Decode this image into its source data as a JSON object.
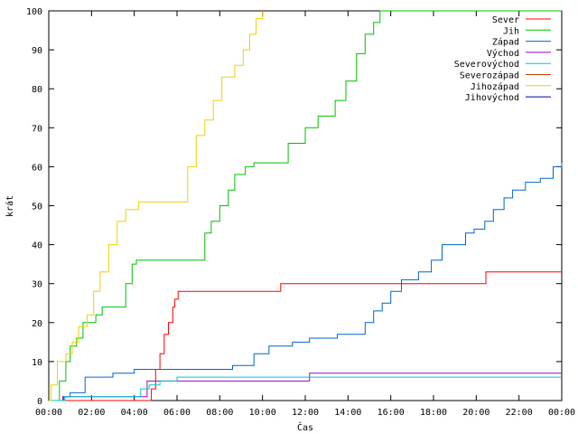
{
  "chart_data": {
    "type": "line",
    "title": "",
    "xlabel": "Čas",
    "ylabel": "krát",
    "ylim": [
      0,
      100
    ],
    "yticks": [
      0,
      10,
      20,
      30,
      40,
      50,
      60,
      70,
      80,
      90,
      100
    ],
    "xlim": [
      0,
      24
    ],
    "xticks": [
      {
        "value": 0,
        "label": "00:00"
      },
      {
        "value": 2,
        "label": "02:00"
      },
      {
        "value": 4,
        "label": "04:00"
      },
      {
        "value": 6,
        "label": "06:00"
      },
      {
        "value": 8,
        "label": "08:00"
      },
      {
        "value": 10,
        "label": "10:00"
      },
      {
        "value": 12,
        "label": "12:00"
      },
      {
        "value": 14,
        "label": "14:00"
      },
      {
        "value": 16,
        "label": "16:00"
      },
      {
        "value": 18,
        "label": "18:00"
      },
      {
        "value": 20,
        "label": "20:00"
      },
      {
        "value": 22,
        "label": "22:00"
      },
      {
        "value": 24,
        "label": "00:00"
      }
    ],
    "grid": false,
    "legend_position": "top-right",
    "x_unit": "hours",
    "series": [
      {
        "name": "Sever",
        "color": "#ff0000",
        "x": [
          0,
          4.6,
          4.8,
          5.0,
          5.2,
          5.4,
          5.6,
          5.8,
          5.9,
          6.05,
          10.8,
          10.85,
          20.4,
          20.45,
          24
        ],
        "y": [
          0,
          0,
          3,
          8,
          12,
          17,
          20,
          24,
          26,
          28,
          28,
          30,
          30,
          33,
          33
        ]
      },
      {
        "name": "Jih",
        "color": "#00c000",
        "x": [
          0,
          0.2,
          0.5,
          0.8,
          1.0,
          1.3,
          1.6,
          2.0,
          2.2,
          2.5,
          3.3,
          3.6,
          3.9,
          4.1,
          7.0,
          7.3,
          7.6,
          8.0,
          8.4,
          8.7,
          9.2,
          9.6,
          10.3,
          11.2,
          12.0,
          12.6,
          13.4,
          13.9,
          14.4,
          14.8,
          15.2,
          15.5,
          24
        ],
        "y": [
          0,
          0,
          5,
          10,
          14,
          16,
          20,
          20,
          22,
          24,
          24,
          30,
          35,
          36,
          36,
          43,
          46,
          50,
          54,
          58,
          60,
          61,
          61,
          66,
          70,
          73,
          77,
          82,
          89,
          94,
          97,
          100,
          100
        ]
      },
      {
        "name": "Západ",
        "color": "#0066cc",
        "x": [
          0,
          0.7,
          1.0,
          1.7,
          2.9,
          3.0,
          4.0,
          5.0,
          8.6,
          9.6,
          10.3,
          11.4,
          12.2,
          13.5,
          14.2,
          14.8,
          15.2,
          15.6,
          16.0,
          16.5,
          17.3,
          17.9,
          18.4,
          19.5,
          19.9,
          20.4,
          20.8,
          21.3,
          21.7,
          22.3,
          23.0,
          23.6,
          24.0
        ],
        "y": [
          0,
          1,
          2,
          6,
          6,
          7,
          8,
          8,
          9,
          12,
          14,
          15,
          16,
          17,
          17,
          20,
          23,
          25,
          28,
          31,
          33,
          36,
          40,
          43,
          44,
          46,
          49,
          52,
          54,
          56,
          57,
          60,
          61
        ]
      },
      {
        "name": "Východ",
        "color": "#a000c0",
        "x": [
          0,
          0.65,
          4.55,
          4.6,
          12.15,
          12.2,
          24
        ],
        "y": [
          0,
          1,
          1,
          5,
          5,
          7,
          7
        ]
      },
      {
        "name": "Severovýchod",
        "color": "#00c8c8",
        "x": [
          0,
          0.75,
          4.1,
          4.3,
          4.7,
          5.2,
          5.8,
          6.0,
          10.5,
          24
        ],
        "y": [
          0,
          1,
          1,
          3,
          4,
          5,
          5,
          6,
          6,
          6
        ]
      },
      {
        "name": "Severozápad",
        "color": "#c04000",
        "x": [],
        "y": []
      },
      {
        "name": "Jihozápad",
        "color": "#f0d000",
        "x": [
          0,
          0.1,
          0.4,
          0.8,
          1.1,
          1.4,
          1.8,
          2.1,
          2.4,
          2.8,
          3.2,
          3.6,
          4.2,
          6.1,
          6.5,
          6.9,
          7.3,
          7.7,
          8.1,
          8.7,
          9.1,
          9.4,
          9.7,
          10.0
        ],
        "y": [
          0,
          4,
          10,
          12,
          15,
          19,
          22,
          28,
          33,
          40,
          46,
          49,
          51,
          51,
          60,
          68,
          72,
          77,
          83,
          86,
          90,
          94,
          98,
          100
        ]
      },
      {
        "name": "Jihovýchod",
        "color": "#0000a0",
        "x": [],
        "y": []
      }
    ]
  }
}
